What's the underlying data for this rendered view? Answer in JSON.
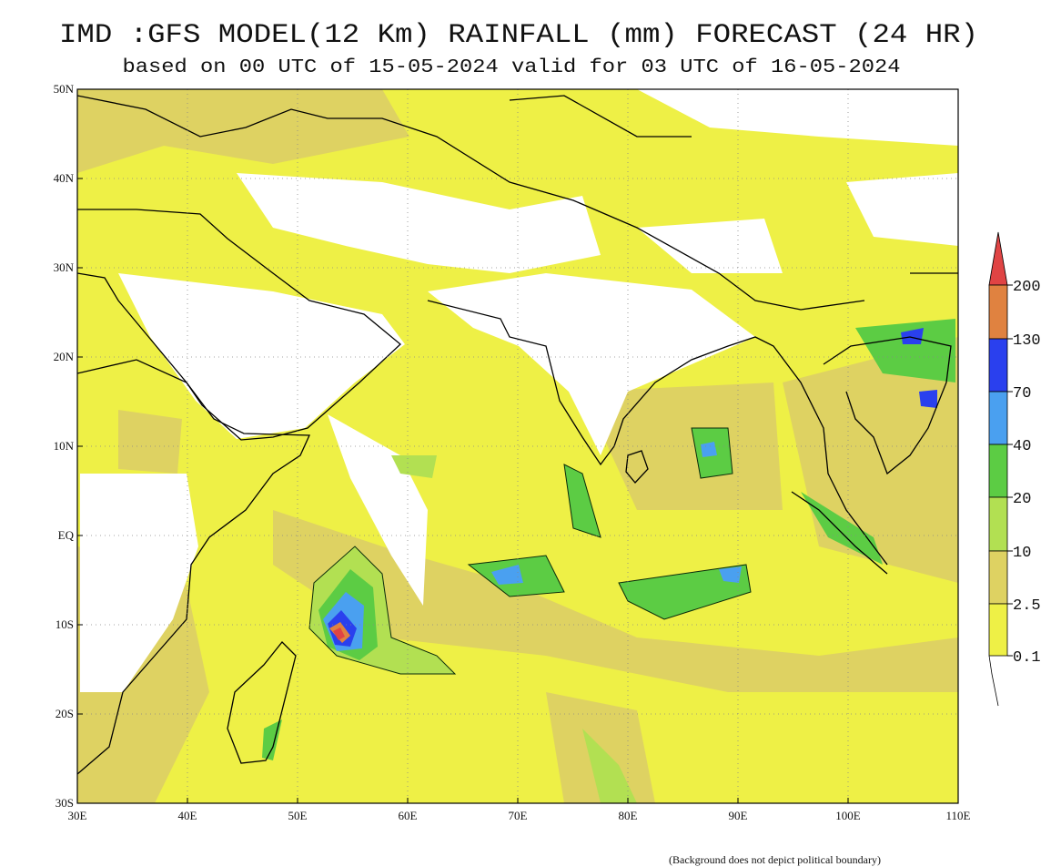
{
  "header": {
    "title": "IMD :GFS MODEL(12 Km) RAINFALL (mm) FORECAST (24 HR)",
    "subtitle": "based on 00 UTC of 15-05-2024 valid for 03 UTC of 16-05-2024"
  },
  "map": {
    "lon_labels": [
      "30E",
      "40E",
      "50E",
      "60E",
      "70E",
      "80E",
      "90E",
      "100E",
      "110E"
    ],
    "lat_labels": [
      "50N",
      "40N",
      "30N",
      "20N",
      "10N",
      "EQ",
      "10S",
      "20S",
      "30S"
    ]
  },
  "legend": {
    "labels": [
      "200",
      "130",
      "70",
      "40",
      "20",
      "10",
      "2.5",
      "0.1"
    ]
  },
  "footnote": "(Background does not depict political boundary)"
}
